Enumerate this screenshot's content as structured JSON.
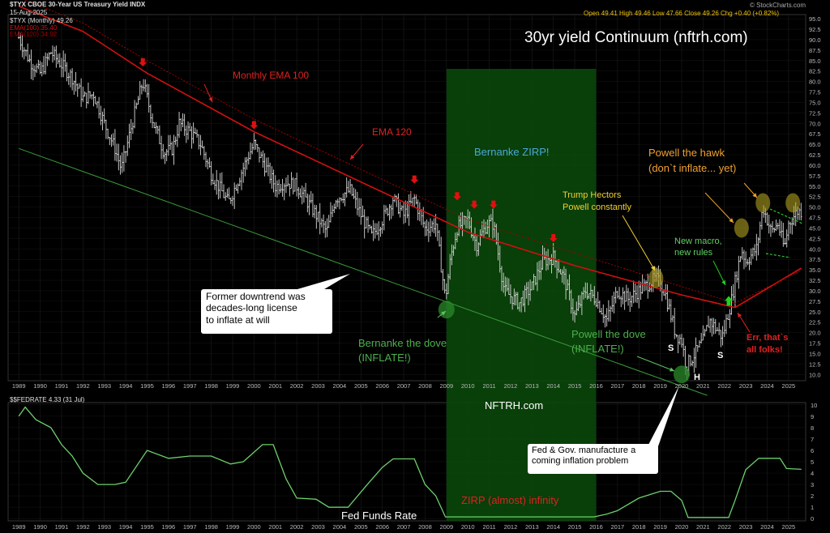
{
  "header": {
    "symbol_line": "$TYX CBOE 30-Year US Treasury Yield INDX",
    "date": "15-Aug-2025",
    "series_label": "$TYX (Monthly) 49.26",
    "ema100_label": "EMA(100) 35.40",
    "ema120_label": "EMA(120) 34.92",
    "ohlc": "Open 49.41  High 49.46  Low 47.66  Close 49.26  Chg +0.40 (+0.82%)",
    "watermark": "© StockCharts.com",
    "fed_label": "$$FEDRATE 4.33 (31 Jul)"
  },
  "colors": {
    "background": "#000000",
    "price_bars": "#d8d8d8",
    "ema_100": "#d01010",
    "ema_120": "#a00000",
    "trendline": "#3a9a3a",
    "zirp_band": "#0b4a0b",
    "fed_line": "#6cd06c",
    "orange": "#f0a030",
    "green_text": "#60c060",
    "red_text": "#e02020",
    "yellow": "#f0d030"
  },
  "annotations": {
    "main_title": "30yr yield Continuum (nftrh.com)",
    "monthly_ema": "Monthly EMA 100",
    "ema_120": "EMA 120",
    "bernanke_zirp": "Bernanke ZIRP!",
    "trump": [
      "Trump Hectors",
      "Powell constantly"
    ],
    "powell_hawk": [
      "Powell the hawk",
      "(don`t inflate... yet)"
    ],
    "new_macro": [
      "New macro,",
      "new rules"
    ],
    "err": [
      "Err, that`s",
      "all folks!"
    ],
    "former_downtrend": [
      "Former downtrend was",
      "decades-long license",
      "to inflate at will"
    ],
    "bernanke_dove": [
      "Bernanke the dove",
      "(INFLATE!)"
    ],
    "powell_dove": [
      "Powell the dove",
      "(INFLATE!)"
    ],
    "s_left": "S",
    "h": "H",
    "s_right": "S",
    "nftrh": "NFTRH.com",
    "fed_gov": [
      "Fed & Gov. manufacture a",
      "coming inflation problem"
    ],
    "zirp_infinity": "ZIRP (almost) infinity",
    "fed_funds": "Fed Funds Rate"
  },
  "chart_data": [
    {
      "type": "bar",
      "title": "$TYX CBOE 30-Year US Treasury Yield INDX",
      "frequency": "monthly",
      "years": [
        1989,
        1990,
        1991,
        1992,
        1993,
        1994,
        1995,
        1996,
        1997,
        1998,
        1999,
        2000,
        2001,
        2002,
        2003,
        2004,
        2005,
        2006,
        2007,
        2008,
        2009,
        2010,
        2011,
        2012,
        2013,
        2014,
        2015,
        2016,
        2017,
        2018,
        2019,
        2020,
        2021,
        2022,
        2023,
        2024,
        2025
      ],
      "y_ticks": [
        95,
        92.5,
        90,
        87.5,
        85,
        82.5,
        80,
        77.5,
        75,
        72.5,
        70,
        67.5,
        65,
        62.5,
        60,
        57.5,
        55,
        52.5,
        50,
        47.5,
        45,
        42.5,
        40,
        37.5,
        35,
        32.5,
        30,
        27.5,
        25,
        22.5,
        20,
        17.5,
        15,
        12.5,
        10
      ],
      "ylim": [
        8.5,
        96
      ],
      "path_points": [
        {
          "x": 1989.0,
          "y": 90.5
        },
        {
          "x": 1989.5,
          "y": 85
        },
        {
          "x": 1990.0,
          "y": 82
        },
        {
          "x": 1990.5,
          "y": 87
        },
        {
          "x": 1991.0,
          "y": 84
        },
        {
          "x": 1991.5,
          "y": 81
        },
        {
          "x": 1992.0,
          "y": 76
        },
        {
          "x": 1992.5,
          "y": 77
        },
        {
          "x": 1993.0,
          "y": 70
        },
        {
          "x": 1993.5,
          "y": 64
        },
        {
          "x": 1993.8,
          "y": 59
        },
        {
          "x": 1994.3,
          "y": 70
        },
        {
          "x": 1994.8,
          "y": 80
        },
        {
          "x": 1995.3,
          "y": 70
        },
        {
          "x": 1995.8,
          "y": 63
        },
        {
          "x": 1996.2,
          "y": 64
        },
        {
          "x": 1996.5,
          "y": 70
        },
        {
          "x": 1997.0,
          "y": 68
        },
        {
          "x": 1997.5,
          "y": 65
        },
        {
          "x": 1998.0,
          "y": 58
        },
        {
          "x": 1998.8,
          "y": 51
        },
        {
          "x": 1999.3,
          "y": 57
        },
        {
          "x": 1999.8,
          "y": 63
        },
        {
          "x": 2000.0,
          "y": 65
        },
        {
          "x": 2000.5,
          "y": 60
        },
        {
          "x": 2001.0,
          "y": 55
        },
        {
          "x": 2001.5,
          "y": 56
        },
        {
          "x": 2002.0,
          "y": 55
        },
        {
          "x": 2002.8,
          "y": 49
        },
        {
          "x": 2003.4,
          "y": 44
        },
        {
          "x": 2003.8,
          "y": 52
        },
        {
          "x": 2004.5,
          "y": 54
        },
        {
          "x": 2005.0,
          "y": 48
        },
        {
          "x": 2005.5,
          "y": 43
        },
        {
          "x": 2006.0,
          "y": 47
        },
        {
          "x": 2006.5,
          "y": 52
        },
        {
          "x": 2007.0,
          "y": 48
        },
        {
          "x": 2007.5,
          "y": 52
        },
        {
          "x": 2008.0,
          "y": 45
        },
        {
          "x": 2008.5,
          "y": 46
        },
        {
          "x": 2008.95,
          "y": 28
        },
        {
          "x": 2009.2,
          "y": 38
        },
        {
          "x": 2009.5,
          "y": 45
        },
        {
          "x": 2010.0,
          "y": 47
        },
        {
          "x": 2010.4,
          "y": 41
        },
        {
          "x": 2010.9,
          "y": 46
        },
        {
          "x": 2011.2,
          "y": 46
        },
        {
          "x": 2011.7,
          "y": 30
        },
        {
          "x": 2012.4,
          "y": 27
        },
        {
          "x": 2013.0,
          "y": 31
        },
        {
          "x": 2013.5,
          "y": 37
        },
        {
          "x": 2014.0,
          "y": 38
        },
        {
          "x": 2014.5,
          "y": 33
        },
        {
          "x": 2015.0,
          "y": 24
        },
        {
          "x": 2015.5,
          "y": 30
        },
        {
          "x": 2016.0,
          "y": 28
        },
        {
          "x": 2016.5,
          "y": 23
        },
        {
          "x": 2017.0,
          "y": 30
        },
        {
          "x": 2017.5,
          "y": 28
        },
        {
          "x": 2018.0,
          "y": 30
        },
        {
          "x": 2018.8,
          "y": 33
        },
        {
          "x": 2019.2,
          "y": 30
        },
        {
          "x": 2019.7,
          "y": 20
        },
        {
          "x": 2020.0,
          "y": 18
        },
        {
          "x": 2020.2,
          "y": 12
        },
        {
          "x": 2020.5,
          "y": 14
        },
        {
          "x": 2021.0,
          "y": 18
        },
        {
          "x": 2021.3,
          "y": 23
        },
        {
          "x": 2021.9,
          "y": 19
        },
        {
          "x": 2022.3,
          "y": 27
        },
        {
          "x": 2022.8,
          "y": 40
        },
        {
          "x": 2023.0,
          "y": 37
        },
        {
          "x": 2023.5,
          "y": 40
        },
        {
          "x": 2023.8,
          "y": 50
        },
        {
          "x": 2024.2,
          "y": 44
        },
        {
          "x": 2024.5,
          "y": 46
        },
        {
          "x": 2024.8,
          "y": 40
        },
        {
          "x": 2025.0,
          "y": 46
        },
        {
          "x": 2025.4,
          "y": 49
        },
        {
          "x": 2025.6,
          "y": 49
        }
      ],
      "ema_100": [
        {
          "x": 1989.0,
          "y": 98
        },
        {
          "x": 1992.0,
          "y": 92
        },
        {
          "x": 1995.0,
          "y": 82
        },
        {
          "x": 2000.0,
          "y": 68
        },
        {
          "x": 2005.0,
          "y": 56
        },
        {
          "x": 2010.0,
          "y": 44
        },
        {
          "x": 2015.0,
          "y": 36
        },
        {
          "x": 2020.0,
          "y": 29
        },
        {
          "x": 2022.5,
          "y": 26
        },
        {
          "x": 2025.6,
          "y": 35.4
        }
      ],
      "ema_120": [
        {
          "x": 1989.0,
          "y": 100
        },
        {
          "x": 1992.0,
          "y": 94
        },
        {
          "x": 1995.0,
          "y": 85
        },
        {
          "x": 2000.0,
          "y": 71
        },
        {
          "x": 2005.0,
          "y": 59
        },
        {
          "x": 2010.0,
          "y": 47
        },
        {
          "x": 2015.0,
          "y": 39
        },
        {
          "x": 2020.0,
          "y": 31
        },
        {
          "x": 2022.5,
          "y": 27
        },
        {
          "x": 2025.6,
          "y": 34.9
        }
      ],
      "trendline": [
        {
          "x": 1989.0,
          "y": 64
        },
        {
          "x": 2021.2,
          "y": 5
        }
      ],
      "zirp_span": [
        2009.0,
        2016.0
      ],
      "red_arrows": [
        {
          "x": 1994.8,
          "y": 84
        },
        {
          "x": 2000.0,
          "y": 69
        },
        {
          "x": 2007.5,
          "y": 56
        },
        {
          "x": 2009.5,
          "y": 52
        },
        {
          "x": 2010.3,
          "y": 50
        },
        {
          "x": 2011.2,
          "y": 50
        },
        {
          "x": 2014.0,
          "y": 42
        }
      ],
      "orange_arrows": [
        {
          "x": 2018.4,
          "y": 38
        },
        {
          "x": 2022.2,
          "y": 50
        },
        {
          "x": 2023.2,
          "y": 55
        }
      ],
      "green_arrows": [
        {
          "x": 2022.2,
          "y": 27
        }
      ],
      "green_circles": [
        {
          "x": 2009.0,
          "y": 25.5
        },
        {
          "x": 2020.0,
          "y": 10
        }
      ],
      "yellow_circles": [
        {
          "x": 2018.8,
          "y": 33
        },
        {
          "x": 2022.8,
          "y": 45
        },
        {
          "x": 2023.8,
          "y": 51
        },
        {
          "x": 2025.2,
          "y": 51
        }
      ]
    },
    {
      "type": "line",
      "title": "$$FEDRATE 4.33 (31 Jul)",
      "y_ticks": [
        10,
        9,
        8,
        7,
        6,
        5,
        4,
        3,
        2,
        1,
        0
      ],
      "ylim": [
        -0.2,
        10.2
      ],
      "points": [
        {
          "x": 1989.0,
          "y": 9.0
        },
        {
          "x": 1989.3,
          "y": 9.8
        },
        {
          "x": 1989.8,
          "y": 8.7
        },
        {
          "x": 1990.5,
          "y": 8.0
        },
        {
          "x": 1991.0,
          "y": 6.5
        },
        {
          "x": 1991.5,
          "y": 5.5
        },
        {
          "x": 1992.0,
          "y": 4.0
        },
        {
          "x": 1992.7,
          "y": 3.0
        },
        {
          "x": 1993.5,
          "y": 3.0
        },
        {
          "x": 1994.0,
          "y": 3.2
        },
        {
          "x": 1995.0,
          "y": 6.0
        },
        {
          "x": 1996.0,
          "y": 5.3
        },
        {
          "x": 1997.0,
          "y": 5.5
        },
        {
          "x": 1998.0,
          "y": 5.5
        },
        {
          "x": 1998.9,
          "y": 4.8
        },
        {
          "x": 1999.5,
          "y": 5.0
        },
        {
          "x": 2000.4,
          "y": 6.5
        },
        {
          "x": 2000.9,
          "y": 6.5
        },
        {
          "x": 2001.5,
          "y": 3.5
        },
        {
          "x": 2002.0,
          "y": 1.8
        },
        {
          "x": 2002.9,
          "y": 1.7
        },
        {
          "x": 2003.5,
          "y": 1.0
        },
        {
          "x": 2004.4,
          "y": 1.0
        },
        {
          "x": 2005.3,
          "y": 3.0
        },
        {
          "x": 2006.0,
          "y": 4.5
        },
        {
          "x": 2006.5,
          "y": 5.25
        },
        {
          "x": 2007.5,
          "y": 5.25
        },
        {
          "x": 2008.0,
          "y": 3.0
        },
        {
          "x": 2008.5,
          "y": 2.0
        },
        {
          "x": 2008.95,
          "y": 0.15
        },
        {
          "x": 2015.9,
          "y": 0.15
        },
        {
          "x": 2016.5,
          "y": 0.4
        },
        {
          "x": 2017.0,
          "y": 0.7
        },
        {
          "x": 2018.0,
          "y": 1.8
        },
        {
          "x": 2019.0,
          "y": 2.4
        },
        {
          "x": 2019.5,
          "y": 2.4
        },
        {
          "x": 2020.0,
          "y": 1.6
        },
        {
          "x": 2020.3,
          "y": 0.1
        },
        {
          "x": 2022.2,
          "y": 0.1
        },
        {
          "x": 2022.5,
          "y": 1.6
        },
        {
          "x": 2023.0,
          "y": 4.3
        },
        {
          "x": 2023.6,
          "y": 5.3
        },
        {
          "x": 2024.6,
          "y": 5.3
        },
        {
          "x": 2024.9,
          "y": 4.4
        },
        {
          "x": 2025.6,
          "y": 4.33
        }
      ]
    }
  ]
}
